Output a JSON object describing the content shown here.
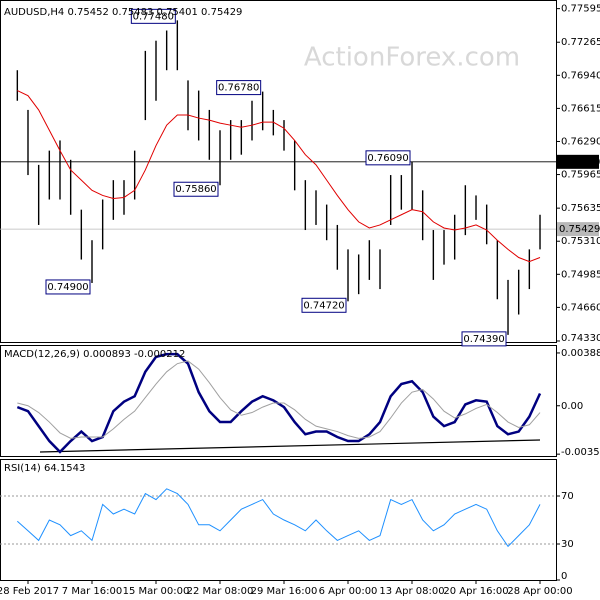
{
  "chart_data": [
    {
      "type": "ohlc",
      "title": "AUDUSD,H4  0.75452 0.75483 0.75401 0.75429",
      "watermark": "ActionForex.com",
      "color": "#000000",
      "high": [
        0.7699,
        0.766,
        0.7606,
        0.762,
        0.763,
        0.7611,
        0.7562,
        0.7532,
        0.7572,
        0.7591,
        0.7591,
        0.762,
        0.7718,
        0.7728,
        0.7738,
        0.7748,
        0.7689,
        0.7679,
        0.766,
        0.764,
        0.765,
        0.765,
        0.7669,
        0.7678,
        0.766,
        0.765,
        0.763,
        0.7591,
        0.7581,
        0.7567,
        0.7547,
        0.7523,
        0.7518,
        0.7532,
        0.7523,
        0.7596,
        0.7596,
        0.7609,
        0.7581,
        0.7542,
        0.7542,
        0.7557,
        0.7586,
        0.7576,
        0.7567,
        0.7532,
        0.7493,
        0.7503,
        0.7523,
        0.7557
      ],
      "low": [
        0.7669,
        0.7596,
        0.7547,
        0.7572,
        0.7572,
        0.7557,
        0.7513,
        0.749,
        0.7523,
        0.7552,
        0.7557,
        0.7572,
        0.765,
        0.7669,
        0.7699,
        0.7699,
        0.764,
        0.763,
        0.7611,
        0.7586,
        0.7611,
        0.7616,
        0.763,
        0.764,
        0.7635,
        0.762,
        0.7581,
        0.7542,
        0.7547,
        0.7532,
        0.7503,
        0.7472,
        0.7479,
        0.7493,
        0.7484,
        0.7547,
        0.7562,
        0.7562,
        0.7532,
        0.7493,
        0.7508,
        0.7513,
        0.7537,
        0.7552,
        0.7528,
        0.7474,
        0.7439,
        0.7459,
        0.7484,
        0.7523
      ],
      "moving_average": {
        "color": "#e00000",
        "values": [
          0.7679,
          0.7674,
          0.766,
          0.764,
          0.762,
          0.7601,
          0.7591,
          0.7581,
          0.7576,
          0.7573,
          0.7574,
          0.7581,
          0.7601,
          0.7625,
          0.7645,
          0.7655,
          0.7655,
          0.7652,
          0.765,
          0.7647,
          0.7645,
          0.7643,
          0.7645,
          0.7648,
          0.7648,
          0.7642,
          0.763,
          0.7616,
          0.7606,
          0.7591,
          0.7576,
          0.7562,
          0.755,
          0.7544,
          0.7547,
          0.7552,
          0.7557,
          0.7562,
          0.756,
          0.755,
          0.7544,
          0.7542,
          0.7544,
          0.7547,
          0.7542,
          0.7532,
          0.7523,
          0.7515,
          0.7511,
          0.7515
        ]
      },
      "ylim": [
        0.7432,
        0.7767
      ],
      "yticks": [
        0.77595,
        0.77265,
        {
          "value": 0.7694,
          "label": "0.76940"
        },
        0.76615,
        {
          "value": 0.7629,
          "label": "0.76290"
        },
        0.75965,
        0.75635,
        {
          "value": 0.7531,
          "label": "0.75310"
        },
        0.74985,
        {
          "value": 0.7466,
          "label": "0.74660"
        },
        {
          "value": 0.7433,
          "label": "0.74330"
        }
      ],
      "price_lines": [
        {
          "value": 0.7609,
          "label": "0.76090",
          "color": "#000000"
        },
        {
          "value": 0.75429,
          "label": "0.75429",
          "color": "#b8b8b8"
        }
      ],
      "annotations": [
        {
          "value": 0.7748,
          "label": "0.77480"
        },
        {
          "value": 0.7678,
          "label": "0.76780"
        },
        {
          "value": 0.7586,
          "label": "0.75860"
        },
        {
          "value": 0.749,
          "label": "0.74900"
        },
        {
          "value": 0.7472,
          "label": "0.74720"
        },
        {
          "value": 0.7609,
          "label": "0.76090"
        },
        {
          "value": 0.7439,
          "label": "0.74390"
        }
      ]
    },
    {
      "type": "line",
      "title": "MACD(12,26,9) 0.000893 -0.000212",
      "series": [
        {
          "color": "#000080",
          "width": 2.5,
          "values": [
            -0.0001,
            -0.0004,
            -0.0015,
            -0.0026,
            -0.0034,
            -0.0026,
            -0.0019,
            -0.0026,
            -0.0023,
            -0.0004,
            0.0003,
            0.0007,
            0.0025,
            0.0036,
            0.0038,
            0.0038,
            0.0031,
            0.001,
            -0.0004,
            -0.0012,
            -0.0012,
            -0.0004,
            0.0003,
            0.0007,
            0.0004,
            -0.0001,
            -0.0012,
            -0.0021,
            -0.0019,
            -0.0019,
            -0.0023,
            -0.0026,
            -0.0026,
            -0.0021,
            -0.0012,
            0.0007,
            0.0016,
            0.0018,
            0.001,
            -0.0008,
            -0.0015,
            -0.0012,
            0.0001,
            0.0004,
            0.0003,
            -0.0015,
            -0.0021,
            -0.0019,
            -0.0008,
            0.0009
          ]
        },
        {
          "color": "#a0a0a0",
          "width": 1,
          "values": [
            0.0002,
            0,
            -0.0005,
            -0.0012,
            -0.002,
            -0.0024,
            -0.0023,
            -0.0023,
            -0.0023,
            -0.0017,
            -0.001,
            -0.0004,
            0.0006,
            0.0016,
            0.0025,
            0.0031,
            0.0033,
            0.0027,
            0.0017,
            0.0006,
            -0.0003,
            -0.0007,
            -0.0005,
            -0.0001,
            0.0002,
            0.0002,
            -0.0003,
            -0.001,
            -0.0015,
            -0.0017,
            -0.0019,
            -0.0022,
            -0.0024,
            -0.0023,
            -0.0019,
            -0.0009,
            0.0002,
            0.001,
            0.0012,
            0.0005,
            -0.0004,
            -0.0009,
            -0.0006,
            -0.0002,
            0.0001,
            -0.0005,
            -0.0012,
            -0.0016,
            -0.0014,
            -0.0005
          ]
        }
      ],
      "ylim": [
        -0.0037,
        0.0044
      ],
      "yticks": [
        0.003888,
        {
          "value": 0,
          "label": "0.00"
        },
        -0.003564
      ],
      "grid": false
    },
    {
      "type": "line",
      "title": "RSI(14) 64.1543",
      "categories": [
        null,
        "28 Feb 2017",
        null,
        null,
        null,
        null,
        null,
        "7 Mar 16:00",
        null,
        null,
        null,
        null,
        null,
        "15 Mar 00:00",
        null,
        null,
        null,
        null,
        null,
        "22 Mar 08:00",
        null,
        null,
        null,
        null,
        null,
        "29 Mar 16:00",
        null,
        null,
        null,
        null,
        null,
        "6 Apr 00:00",
        null,
        null,
        null,
        null,
        null,
        "13 Apr 08:00",
        null,
        null,
        null,
        null,
        null,
        "20 Apr 16:00",
        null,
        null,
        null,
        null,
        null,
        "28 Apr 00:00"
      ],
      "series": [
        {
          "color": "#1e90ff",
          "width": 1,
          "values": [
            49,
            41,
            33,
            50,
            46,
            37,
            41,
            33,
            63,
            55,
            59,
            55,
            72,
            67,
            76,
            72,
            63,
            46,
            46,
            41,
            50,
            59,
            63,
            67,
            55,
            50,
            46,
            41,
            50,
            41,
            33,
            37,
            41,
            33,
            37,
            67,
            63,
            67,
            50,
            41,
            46,
            55,
            59,
            63,
            59,
            41,
            28,
            37,
            46,
            63
          ]
        }
      ],
      "ylim": [
        0,
        100
      ],
      "yticks": [
        70,
        30,
        0
      ],
      "grid": true
    }
  ]
}
